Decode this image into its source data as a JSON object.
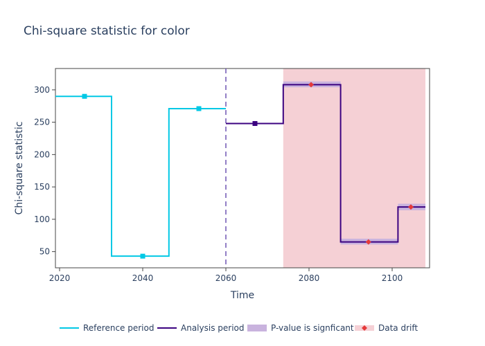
{
  "chart_data": {
    "type": "line",
    "title": "Chi-square statistic for color",
    "xlabel": "Time",
    "ylabel": "Chi-square statistic",
    "xlim": [
      2019,
      2109
    ],
    "ylim": [
      25,
      333
    ],
    "x_ticks": [
      2020,
      2040,
      2060,
      2080,
      2100
    ],
    "y_ticks": [
      50,
      100,
      150,
      200,
      250,
      300
    ],
    "grid": false,
    "legend_position": "bottom",
    "series": [
      {
        "name": "Reference period",
        "color": "#00c8e5",
        "marker": "square",
        "steps": [
          {
            "x_start": 2019,
            "x_end": 2032.5,
            "y": 290
          },
          {
            "x_start": 2032.5,
            "x_end": 2046.3,
            "y": 43
          },
          {
            "x_start": 2046.3,
            "x_end": 2060,
            "y": 271
          }
        ],
        "markers": [
          {
            "x": 2026,
            "y": 290
          },
          {
            "x": 2040,
            "y": 43
          },
          {
            "x": 2053.5,
            "y": 271
          }
        ]
      },
      {
        "name": "Analysis period",
        "color": "#3b0280",
        "marker": "square",
        "steps": [
          {
            "x_start": 2060,
            "x_end": 2073.8,
            "y": 248
          },
          {
            "x_start": 2073.8,
            "x_end": 2087.6,
            "y": 308
          },
          {
            "x_start": 2087.6,
            "x_end": 2101.4,
            "y": 65
          },
          {
            "x_start": 2101.4,
            "x_end": 2108,
            "y": 119
          }
        ],
        "markers": [
          {
            "x": 2067,
            "y": 248
          }
        ]
      }
    ],
    "significance_bands": {
      "name": "P-value is signficant",
      "color": "#c9b3de",
      "bands": [
        {
          "x_start": 2073.8,
          "x_end": 2087.6,
          "y_low": 304,
          "y_high": 313
        },
        {
          "x_start": 2087.6,
          "x_end": 2101.4,
          "y_low": 61,
          "y_high": 70
        },
        {
          "x_start": 2101.4,
          "x_end": 2108,
          "y_low": 114,
          "y_high": 124
        }
      ]
    },
    "drift": {
      "name": "Data drift",
      "region_color": "#f5d0d5",
      "marker_color": "#e53a3a",
      "region": {
        "x_start": 2073.8,
        "x_end": 2108
      },
      "points": [
        {
          "x": 2080.5,
          "y": 308
        },
        {
          "x": 2094.3,
          "y": 65
        },
        {
          "x": 2104.5,
          "y": 119
        }
      ]
    },
    "reference_line": {
      "x": 2060,
      "color": "#6e55b3",
      "style": "dashed"
    }
  }
}
